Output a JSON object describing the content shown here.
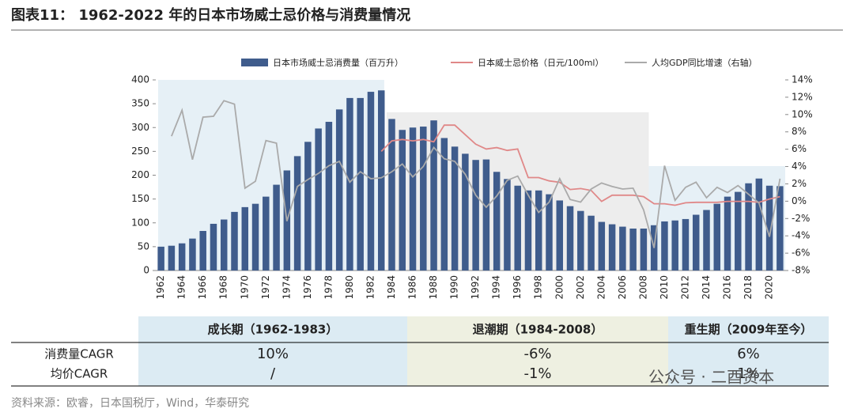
{
  "chart_data": {
    "type": "bar-line",
    "title": "图表11：  1962-2022 年的日本市场威士忌价格与消费量情况",
    "categories": [
      "1962",
      null,
      "1964",
      null,
      "1966",
      null,
      "1968",
      null,
      "1970",
      null,
      "1972",
      null,
      "1974",
      null,
      "1976",
      null,
      "1978",
      null,
      "1980",
      null,
      "1982",
      null,
      "1984",
      null,
      "1986",
      null,
      "1988",
      null,
      "1990",
      null,
      "1992",
      null,
      "1994",
      null,
      "1996",
      null,
      "1998",
      null,
      "2000",
      null,
      "2002",
      null,
      "2004",
      null,
      "2006",
      null,
      "2008",
      null,
      "2010",
      null,
      "2012",
      null,
      "2014",
      null,
      "2016",
      null,
      "2018",
      null,
      "2020",
      null
    ],
    "series": [
      {
        "name": "日本市场威士忌消费量（百万升）",
        "type": "bar",
        "color": "#3f5c8c",
        "values": [
          50,
          52,
          57,
          67,
          83,
          98,
          107,
          123,
          133,
          140,
          155,
          180,
          210,
          240,
          270,
          298,
          312,
          338,
          362,
          362,
          375,
          378,
          318,
          295,
          300,
          302,
          315,
          278,
          260,
          245,
          232,
          233,
          207,
          192,
          178,
          168,
          168,
          160,
          147,
          135,
          125,
          115,
          102,
          97,
          92,
          88,
          88,
          95,
          103,
          105,
          108,
          117,
          127,
          140,
          155,
          165,
          183,
          193,
          178,
          177
        ]
      },
      {
        "name": "日本威士忌价格（日元/100ml）",
        "type": "line",
        "color": "#e08888",
        "values": [
          null,
          null,
          null,
          null,
          null,
          null,
          null,
          null,
          null,
          null,
          null,
          null,
          null,
          null,
          null,
          null,
          null,
          null,
          null,
          null,
          null,
          250,
          272,
          275,
          272,
          275,
          270,
          305,
          305,
          285,
          265,
          255,
          258,
          252,
          255,
          195,
          195,
          188,
          185,
          170,
          172,
          168,
          145,
          158,
          158,
          158,
          155,
          140,
          140,
          137,
          142,
          143,
          143,
          143,
          145,
          145,
          145,
          143,
          150,
          155
        ]
      },
      {
        "name": "人均GDP同比增速（右轴）",
        "type": "line",
        "axis": "y2",
        "color": "#aaaaaa",
        "values": [
          null,
          7.5,
          10.5,
          4.8,
          9.7,
          9.8,
          11.6,
          11.2,
          1.5,
          2.3,
          7.0,
          6.7,
          -2.3,
          1.7,
          2.5,
          3.2,
          4.1,
          4.6,
          2.2,
          3.4,
          2.6,
          2.7,
          3.4,
          4.3,
          2.8,
          4.0,
          6.2,
          4.9,
          4.6,
          3.1,
          0.7,
          -0.7,
          0.6,
          2.4,
          2.9,
          0.7,
          -1.3,
          -0.1,
          2.6,
          0.2,
          -0.1,
          1.4,
          2.1,
          1.7,
          1.4,
          1.5,
          -1.0,
          -5.4,
          4.1,
          0.1,
          1.6,
          2.2,
          0.4,
          1.6,
          1.0,
          1.8,
          0.8,
          -0.2,
          -4.1,
          2.6
        ]
      }
    ],
    "ylim": [
      0,
      400
    ],
    "yticks": [
      0,
      50,
      100,
      150,
      200,
      250,
      300,
      350,
      400
    ],
    "y2lim": [
      -8,
      14
    ],
    "y2ticks": [
      {
        "value": -8,
        "label": "-8%"
      },
      {
        "value": -6,
        "label": "-6%"
      },
      {
        "value": -4,
        "label": "-4%"
      },
      {
        "value": -2,
        "label": "-2%"
      },
      {
        "value": 0,
        "label": "0%"
      },
      {
        "value": 2,
        "label": "2%"
      },
      {
        "value": 4,
        "label": "4%"
      },
      {
        "value": 6,
        "label": "6%"
      },
      {
        "value": 8,
        "label": "8%"
      },
      {
        "value": 10,
        "label": "10%"
      },
      {
        "value": 12,
        "label": "12%"
      },
      {
        "value": 14,
        "label": "14%"
      }
    ],
    "legend": "top"
  },
  "table": {
    "columns": [
      "成长期（1962-1983）",
      "退潮期（1984-2008）",
      "重生期（2009年至今）"
    ],
    "rows": [
      [
        "消费量CAGR",
        "10%",
        "-6%",
        "6%"
      ],
      [
        "均价CAGR",
        "/",
        "-1%",
        "1%"
      ]
    ]
  },
  "source": "资料来源：欧睿，日本国税厅，Wind，华泰研究",
  "watermark": "公众号 · 二酉资本"
}
